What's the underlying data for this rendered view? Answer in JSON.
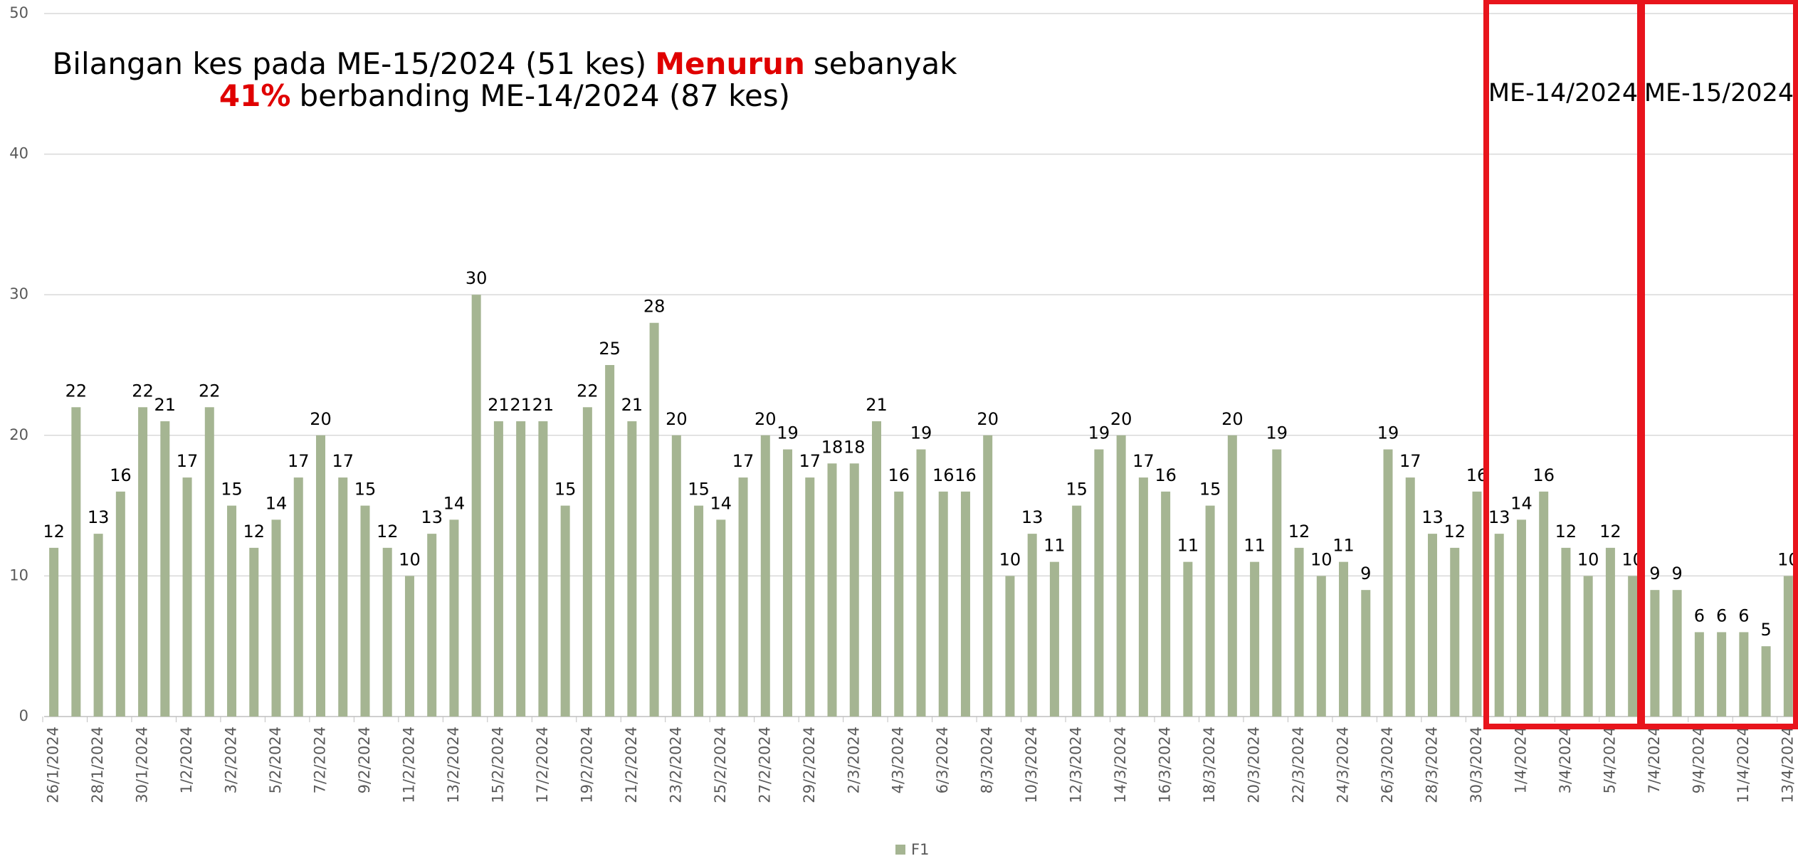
{
  "chart_data": {
    "type": "bar",
    "annotation": {
      "line1": [
        "Bilangan kes pada ME-15/2024 (51 kes)",
        "Menurun",
        "sebanyak"
      ],
      "line2": [
        "41%",
        "berbanding ME-14/2024 (87 kes)"
      ],
      "highlight_color": "#e00000"
    },
    "boxes": [
      {
        "label": "ME-14/2024"
      },
      {
        "label": "ME-15/2024"
      }
    ],
    "box_color": "#e8141c",
    "categories": [
      "26/1/2024",
      null,
      "28/1/2024",
      null,
      "30/1/2024",
      null,
      "1/2/2024",
      null,
      "3/2/2024",
      null,
      "5/2/2024",
      null,
      "7/2/2024",
      null,
      "9/2/2024",
      null,
      "11/2/2024",
      null,
      "13/2/2024",
      null,
      "15/2/2024",
      null,
      "17/2/2024",
      null,
      "19/2/2024",
      null,
      "21/2/2024",
      null,
      "23/2/2024",
      null,
      "25/2/2024",
      null,
      "27/2/2024",
      null,
      "29/2/2024",
      null,
      "2/3/2024",
      null,
      "4/3/2024",
      null,
      "6/3/2024",
      null,
      "8/3/2024",
      null,
      "10/3/2024",
      null,
      "12/3/2024",
      null,
      "14/3/2024",
      null,
      "16/3/2024",
      null,
      "18/3/2024",
      null,
      "20/3/2024",
      null,
      "22/3/2024",
      null,
      "24/3/2024",
      null,
      "26/3/2024",
      null,
      "28/3/2024",
      null,
      "30/3/2024",
      null,
      "1/4/2024",
      null,
      "3/4/2024",
      null,
      "5/4/2024",
      null,
      "7/4/2024",
      null,
      "9/4/2024",
      null,
      "11/4/2024",
      null,
      "13/4/2024"
    ],
    "series": [
      {
        "name": "F1",
        "color": "#a5b592",
        "values": [
          12,
          22,
          13,
          16,
          22,
          21,
          17,
          22,
          15,
          12,
          14,
          17,
          20,
          17,
          15,
          12,
          10,
          13,
          14,
          30,
          21,
          21,
          21,
          15,
          22,
          25,
          21,
          28,
          20,
          15,
          14,
          17,
          20,
          19,
          17,
          18,
          18,
          21,
          16,
          19,
          16,
          16,
          20,
          10,
          13,
          11,
          15,
          19,
          20,
          17,
          16,
          11,
          15,
          20,
          11,
          19,
          12,
          10,
          11,
          9,
          19,
          17,
          13,
          12,
          16,
          13,
          14,
          16,
          12,
          10,
          12,
          10,
          9,
          9,
          6,
          6,
          6,
          5,
          10
        ]
      }
    ],
    "ylim": [
      0,
      50
    ],
    "yticks": [
      0,
      10,
      20,
      30,
      40,
      50
    ],
    "grid": true,
    "legend": "bottom"
  }
}
